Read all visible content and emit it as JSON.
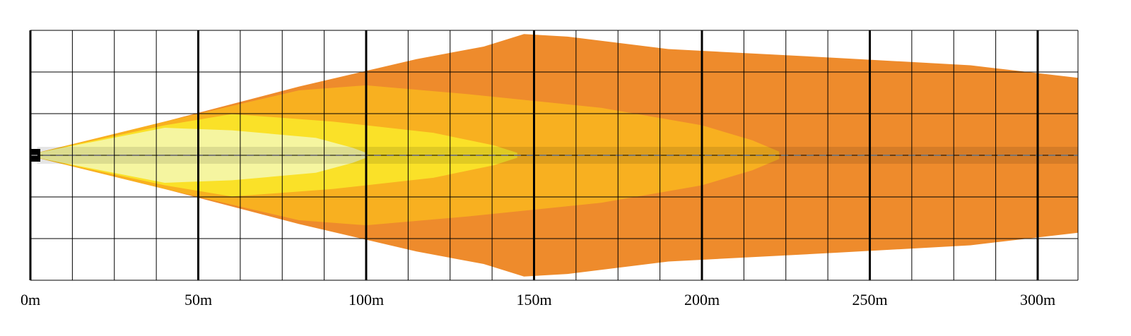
{
  "chart_data": {
    "type": "area",
    "title": "",
    "xlabel": "",
    "ylabel": "",
    "x_unit": "m",
    "xlim": [
      0,
      312
    ],
    "x_ticks": [
      "0m",
      "50m",
      "100m",
      "150m",
      "200m",
      "250m",
      "300m"
    ],
    "x_tick_values": [
      0,
      50,
      100,
      150,
      200,
      250,
      300
    ],
    "minor_x_step": 12.5,
    "y_grid_lines": 6,
    "grid": true,
    "legend": "none",
    "series": [
      {
        "color": "#ee8b2c",
        "reach_m": 312,
        "half_width_profile": [
          [
            2,
            0.02
          ],
          [
            40,
            0.27
          ],
          [
            80,
            0.55
          ],
          [
            115,
            0.77
          ],
          [
            135,
            0.87
          ],
          [
            147,
            0.97
          ],
          [
            160,
            0.95
          ],
          [
            190,
            0.85
          ],
          [
            240,
            0.78
          ],
          [
            280,
            0.72
          ],
          [
            312,
            0.62
          ]
        ]
      },
      {
        "color": "#f8b020",
        "reach_m": 223,
        "half_width_profile": [
          [
            2,
            0.02
          ],
          [
            40,
            0.27
          ],
          [
            80,
            0.52
          ],
          [
            100,
            0.56
          ],
          [
            130,
            0.49
          ],
          [
            170,
            0.38
          ],
          [
            200,
            0.24
          ],
          [
            215,
            0.12
          ],
          [
            223,
            0.03
          ]
        ]
      },
      {
        "color": "#fae128",
        "reach_m": 145,
        "half_width_profile": [
          [
            2,
            0.02
          ],
          [
            40,
            0.24
          ],
          [
            60,
            0.33
          ],
          [
            90,
            0.27
          ],
          [
            120,
            0.18
          ],
          [
            138,
            0.08
          ],
          [
            145,
            0.02
          ]
        ]
      },
      {
        "color": "#f5f5a0",
        "reach_m": 100,
        "half_width_profile": [
          [
            2,
            0.02
          ],
          [
            40,
            0.22
          ],
          [
            60,
            0.2
          ],
          [
            85,
            0.14
          ],
          [
            96,
            0.06
          ],
          [
            100,
            0.02
          ]
        ]
      }
    ],
    "centerline": {
      "color_dash": "#ffffff"
    }
  }
}
